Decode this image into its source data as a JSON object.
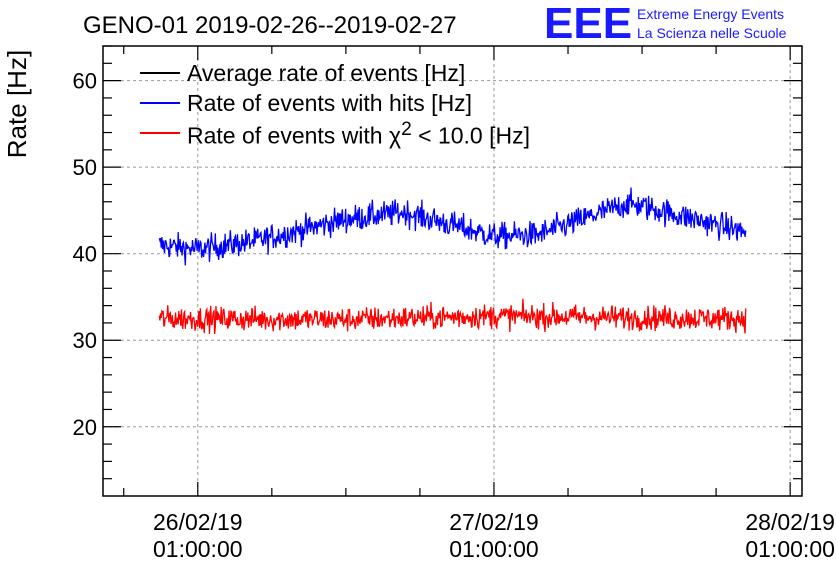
{
  "header": {
    "title": "GENO-01 2019-02-26--2019-02-27",
    "logo_text": "EEE",
    "logo_line1": "Extreme Energy Events",
    "logo_line2": "La Scienza nelle Scuole",
    "logo_color": "#1a1aff"
  },
  "chart_data": {
    "type": "line",
    "ylabel": "Rate [Hz]",
    "xlabel": "",
    "ylim": [
      12,
      64
    ],
    "yticks": [
      20,
      30,
      40,
      50,
      60
    ],
    "x_unit": "days since 2019-02-26 01:00:00",
    "xlim": [
      -0.32,
      2.04
    ],
    "xticks": [
      {
        "value": 0,
        "date": "26/02/19",
        "time": "01:00:00"
      },
      {
        "value": 1,
        "date": "27/02/19",
        "time": "01:00:00"
      },
      {
        "value": 2,
        "date": "28/02/19",
        "time": "01:00:00"
      }
    ],
    "grid": true,
    "legend": {
      "placement": "top-left"
    },
    "series": [
      {
        "name": "Average rate of events [Hz]",
        "color": "#000000",
        "label_html": "Average rate of events [Hz]",
        "x_range": [
          -0.13,
          1.85
        ],
        "values": []
      },
      {
        "name": "Rate of events with hits [Hz]",
        "color": "#0000ff",
        "label_html": "Rate of events with hits [Hz]",
        "x_range": [
          -0.13,
          1.85
        ],
        "noise": 1.1,
        "x": [
          -0.13,
          0.0,
          0.2,
          0.5,
          0.7,
          1.0,
          1.15,
          1.45,
          1.5,
          1.85
        ],
        "values": [
          41.0,
          40.5,
          41.5,
          44.0,
          44.8,
          42.0,
          42.2,
          45.8,
          45.5,
          42.5
        ]
      },
      {
        "name": "Rate of events with χ² < 10.0 [Hz]",
        "color": "#ff0000",
        "label_html": "Rate of events with χ<sup>2</sup> &lt; 10.0 [Hz]",
        "x_range": [
          -0.13,
          1.85
        ],
        "noise": 1.0,
        "x": [
          -0.13,
          0.5,
          1.0,
          1.5,
          1.85
        ],
        "values": [
          32.5,
          32.4,
          32.8,
          32.6,
          32.5
        ]
      }
    ]
  }
}
